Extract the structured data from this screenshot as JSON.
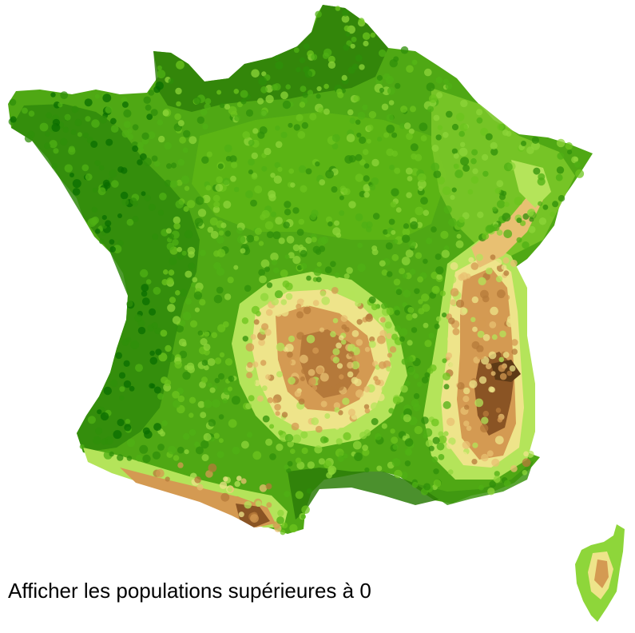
{
  "caption": {
    "text": "Afficher les populations supérieures à 0",
    "min_population": 0
  },
  "map": {
    "regions": [
      "France métropolitaine",
      "Corse"
    ],
    "color_scale": [
      "#0a6e00",
      "#2f8f0a",
      "#4fb014",
      "#6cc41e",
      "#8ed63a",
      "#b4e45a",
      "#eee48a",
      "#e8c072",
      "#d49a52",
      "#b5793a",
      "#8a5424",
      "#5e3a16"
    ]
  }
}
